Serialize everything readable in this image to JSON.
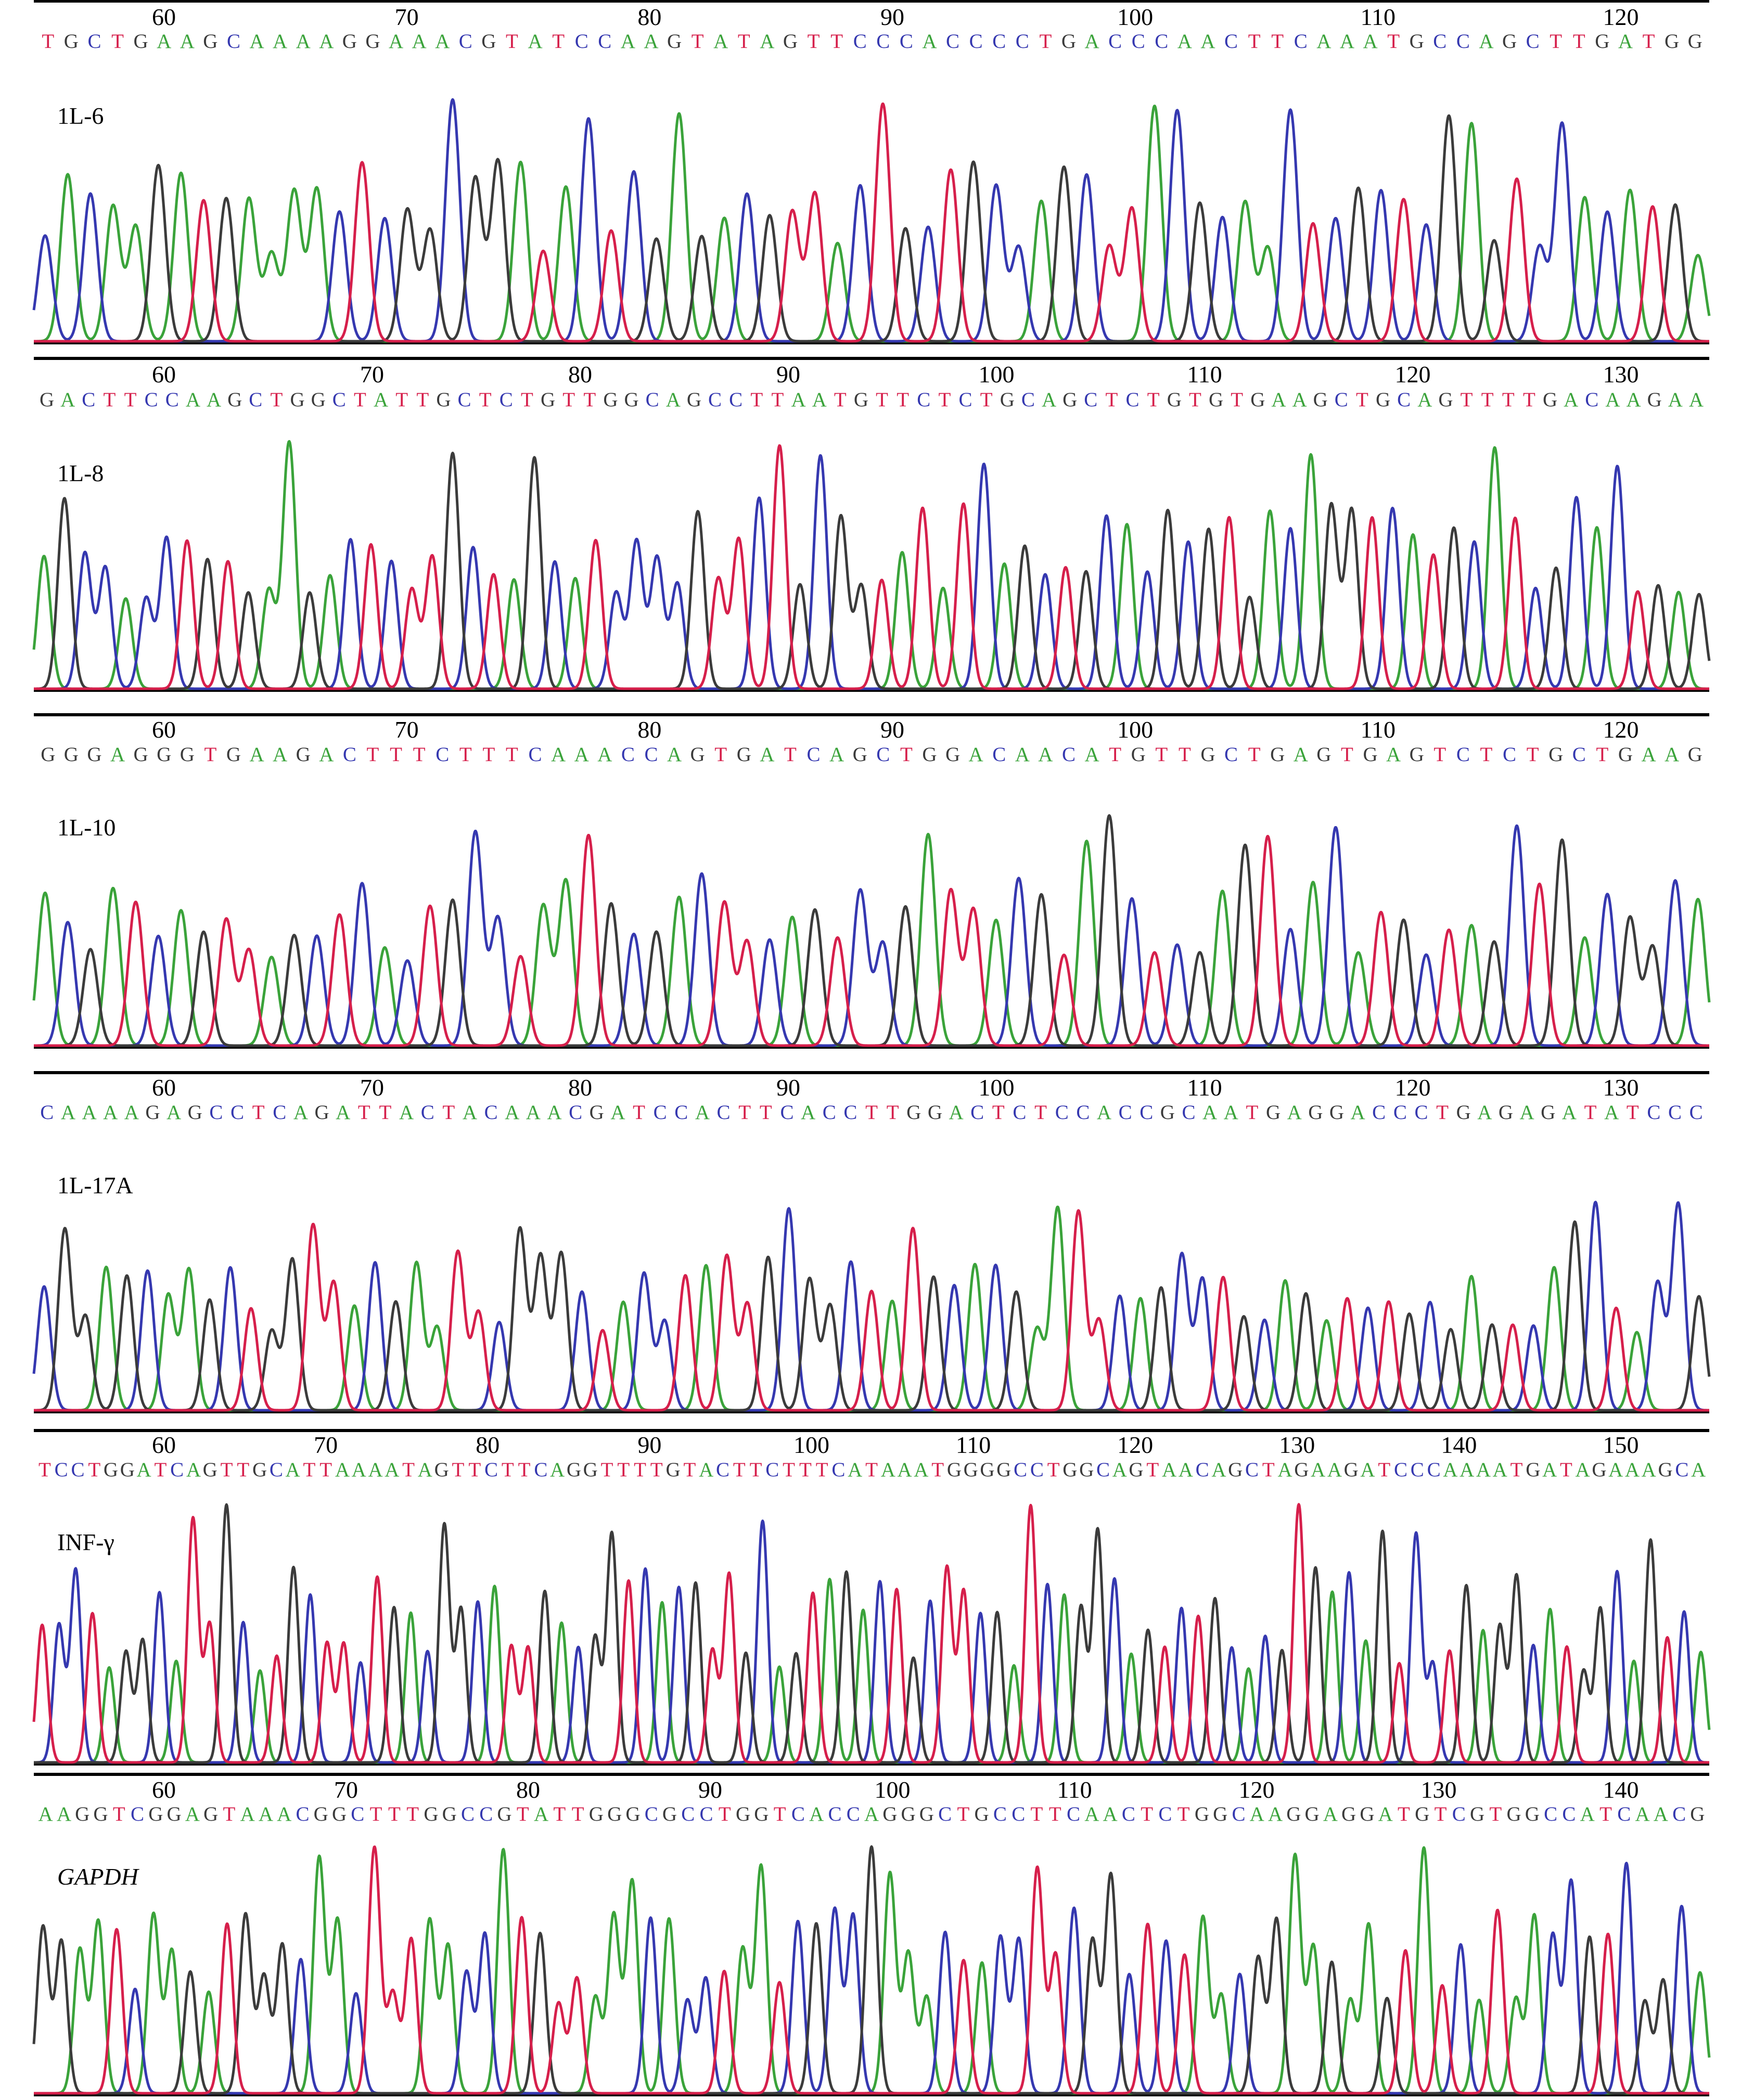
{
  "colors": {
    "A": "#3aa33a",
    "C": "#3538b0",
    "G": "#3b3b3b",
    "T": "#d61f4b",
    "axis": "#000000"
  },
  "panels": [
    {
      "label": "1L-6",
      "italic": false,
      "ticks": [
        60,
        70,
        80,
        90,
        100,
        110,
        120
      ],
      "sequence": "TGCTGAAGCAAAAGGAAACGTATCCAAGTATAGTTCCCACCCCTGACCCAACTTCAAATGCCAGCTTGATGG",
      "peaks": [
        1,
        0,
        1,
        0,
        0,
        2,
        0,
        3,
        2,
        0,
        0,
        0,
        0,
        1,
        3,
        1,
        2,
        2,
        1,
        2,
        2,
        0,
        3,
        0,
        1,
        3,
        1,
        2,
        0,
        2,
        0,
        1,
        2,
        3,
        3,
        0,
        1,
        3,
        2,
        1,
        3,
        2,
        1,
        1,
        0,
        2,
        1,
        3,
        3,
        0,
        1,
        2,
        1,
        0,
        0,
        1,
        3,
        1,
        2,
        1,
        3,
        1,
        2,
        0,
        2,
        3,
        1,
        1,
        0,
        1,
        0,
        3,
        2,
        0
      ]
    },
    {
      "label": "1L-8",
      "italic": false,
      "ticks": [
        60,
        70,
        80,
        90,
        100,
        110,
        120,
        130
      ],
      "sequence": "GACTTCCAAGCTGGCTATTGCTCTGTTGGCAGCCTTAATGTTCTCTGCAGCTCTGTGTGAAGCTGCAGTTTTGACAAGAA",
      "peaks": [
        0,
        2,
        1,
        1,
        0,
        1,
        1,
        3,
        2,
        3,
        2,
        0,
        0,
        2,
        0,
        1,
        3,
        1,
        3,
        3,
        2,
        1,
        3,
        0,
        2,
        1,
        0,
        3,
        1,
        1,
        1,
        1,
        2,
        3,
        3,
        1,
        3,
        2,
        1,
        2,
        2,
        3,
        0,
        3,
        0,
        3,
        1,
        0,
        2,
        1,
        3,
        2,
        1,
        0,
        1,
        2,
        1,
        2,
        3,
        2,
        0,
        1,
        0,
        2,
        2,
        3,
        1,
        0,
        3,
        2,
        1,
        0,
        3,
        1,
        2,
        1,
        0,
        1,
        3,
        2,
        0,
        2
      ]
    },
    {
      "label": "1L-10",
      "italic": false,
      "ticks": [
        60,
        70,
        80,
        90,
        100,
        110,
        120
      ],
      "sequence": "GGGAGGGTGAAGACTTTCTTTCAAACCAGTGATCAGCTGGACAACATGTTGCTGAGTGAGTCTCTGCTGAAG",
      "peaks": [
        0,
        1,
        2,
        0,
        3,
        1,
        0,
        2,
        3,
        3,
        0,
        2,
        1,
        3,
        1,
        0,
        1,
        3,
        2,
        1,
        1,
        3,
        0,
        0,
        3,
        2,
        1,
        2,
        0,
        1,
        3,
        3,
        1,
        0,
        2,
        3,
        1,
        1,
        2,
        0,
        3,
        3,
        0,
        1,
        2,
        3,
        0,
        2,
        1,
        3,
        1,
        2,
        0,
        2,
        3,
        1,
        0,
        1,
        0,
        3,
        2,
        1,
        3,
        0,
        2,
        1,
        3,
        2,
        0,
        1,
        2,
        2,
        1,
        0
      ]
    },
    {
      "label": "1L-17A",
      "italic": false,
      "ticks": [
        60,
        70,
        80,
        90,
        100,
        110,
        120,
        130
      ],
      "sequence": "CAAAAGAGCCTCAGATTACTACAAACGATCCACTTCACCTTGGACTCTCCACCGCAATGAGGACCCTGAGAGATATCCC",
      "peaks": [
        1,
        2,
        2,
        0,
        2,
        1,
        0,
        0,
        2,
        1,
        3,
        2,
        2,
        3,
        3,
        0,
        1,
        2,
        0,
        0,
        3,
        3,
        1,
        2,
        2,
        2,
        1,
        3,
        0,
        1,
        1,
        3,
        0,
        3,
        3,
        2,
        1,
        2,
        2,
        1,
        3,
        0,
        3,
        2,
        1,
        0,
        1,
        2,
        0,
        0,
        3,
        3,
        1,
        0,
        2,
        1,
        1,
        3,
        2,
        1,
        0,
        2,
        0,
        3,
        1,
        3,
        2,
        1,
        2,
        0,
        2,
        3,
        1,
        0,
        2,
        1,
        3,
        0,
        1,
        1,
        2
      ]
    },
    {
      "label": "INF-γ",
      "italic": false,
      "ticks": [
        60,
        70,
        80,
        90,
        100,
        110,
        120,
        130,
        140,
        150
      ],
      "sequence": "TCCTGGATCAGTTGCATTAAAATAGTTCTTCAGGTTTTGTACTTCTTTCATAAATGGGGCCTGGCAGTAACAGCTAGAAGATCCCAAAATGATAGAAAGCA",
      "peaks": [
        3,
        1,
        1,
        3,
        0,
        2,
        2,
        1,
        0,
        3,
        3,
        2,
        1,
        0,
        3,
        2,
        1,
        3,
        3,
        1,
        3,
        2,
        0,
        1,
        2,
        2,
        1,
        0,
        3,
        3,
        2,
        0,
        1,
        2,
        2,
        3,
        1,
        0,
        1,
        2,
        3,
        3,
        2,
        1,
        0,
        2,
        3,
        0,
        2,
        0,
        1,
        3,
        2,
        1,
        3,
        3,
        1,
        2,
        0,
        3,
        1,
        0,
        2,
        2,
        1,
        0,
        2,
        3,
        1,
        3,
        2,
        1,
        0,
        1,
        2,
        3,
        2,
        0,
        1,
        0,
        2,
        3,
        1,
        1,
        3,
        2,
        0,
        2,
        2,
        1,
        0,
        3,
        2,
        2,
        1,
        0,
        2,
        3,
        1,
        0
      ]
    },
    {
      "label": "GAPDH",
      "italic": true,
      "ticks": [
        60,
        70,
        80,
        90,
        100,
        110,
        120,
        130,
        140
      ],
      "sequence": "AAGGTCGGAGTAAACGGCTTTGGCCGTATTGGGCGCCTGGTCACCAGGGCTGCCTTCAACTCTGGCAAGGAGGATGTCGTGGCCATCAACG",
      "peaks": [
        2,
        2,
        0,
        0,
        3,
        1,
        0,
        0,
        2,
        0,
        3,
        2,
        2,
        2,
        1,
        0,
        0,
        1,
        3,
        3,
        3,
        0,
        0,
        1,
        1,
        0,
        3,
        2,
        3,
        3,
        0,
        0,
        0,
        1,
        0,
        1,
        1,
        3,
        0,
        0,
        3,
        1,
        2,
        1,
        1,
        2,
        0,
        0,
        0,
        1,
        3,
        0,
        1,
        1,
        3,
        3,
        1,
        2,
        2,
        1,
        3,
        1,
        3,
        0,
        0,
        1,
        2,
        2,
        0,
        0,
        2,
        0,
        0,
        2,
        3,
        0,
        3,
        1,
        0,
        3,
        0,
        0,
        1,
        1,
        2,
        3,
        1,
        2,
        2,
        1,
        0
      ]
    }
  ]
}
